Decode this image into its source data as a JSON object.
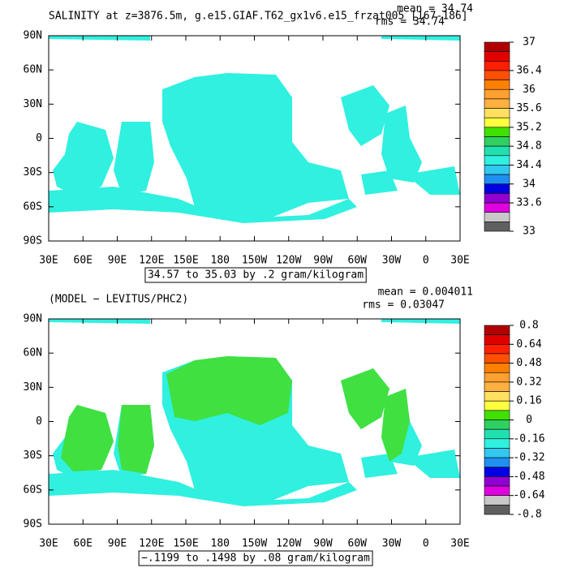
{
  "panels": [
    {
      "title": "SALINITY at z=3876.5m, g.e15.GIAF.T62_gx1v6.e15_frzat005 [167-186]",
      "mean": "mean = 34.74",
      "rms": "rms = 34.74",
      "lat_labels": [
        "90N",
        "60N",
        "30N",
        "0",
        "30S",
        "60S",
        "90S"
      ],
      "lon_labels": [
        "30E",
        "60E",
        "90E",
        "120E",
        "150E",
        "180",
        "150W",
        "120W",
        "90W",
        "60W",
        "30W",
        "0",
        "30E"
      ],
      "contour_note": "34.57 to 35.03 by .2 gram/kilogram",
      "colorbar": {
        "labels": [
          37,
          36.4,
          36,
          35.6,
          35.2,
          34.8,
          34.4,
          34,
          33.6,
          33
        ],
        "colors": [
          "#b00000",
          "#e00000",
          "#ff2000",
          "#ff5000",
          "#ff8000",
          "#ffa030",
          "#ffb040",
          "#ffe060",
          "#ffff40",
          "#40e000",
          "#30d060",
          "#20e0b0",
          "#30f0e0",
          "#30c8f0",
          "#2090f0",
          "#0000e0",
          "#9000d0",
          "#e000e0",
          "#c8c8c8",
          "#606060"
        ]
      }
    },
    {
      "title": "(MODEL − LEVITUS/PHC2)",
      "mean": "mean = 0.004011",
      "rms": "rms = 0.03047",
      "lat_labels": [
        "90N",
        "60N",
        "30N",
        "0",
        "30S",
        "60S",
        "90S"
      ],
      "lon_labels": [
        "30E",
        "60E",
        "90E",
        "120E",
        "150E",
        "180",
        "150W",
        "120W",
        "90W",
        "60W",
        "30W",
        "0",
        "30E"
      ],
      "contour_note": "−.1199 to .1498 by .08 gram/kilogram",
      "colorbar": {
        "labels": [
          0.8,
          0.64,
          0.48,
          0.32,
          0.16,
          0,
          -0.16,
          -0.32,
          -0.48,
          -0.64,
          -0.8
        ],
        "colors": [
          "#b00000",
          "#e00000",
          "#ff2000",
          "#ff5000",
          "#ff8000",
          "#ffa030",
          "#ffb040",
          "#ffe060",
          "#ffff40",
          "#40e000",
          "#30d060",
          "#20e0b0",
          "#30f0e0",
          "#30c8f0",
          "#2090f0",
          "#0000e0",
          "#9000d0",
          "#e000e0",
          "#c8c8c8",
          "#606060"
        ]
      }
    }
  ]
}
